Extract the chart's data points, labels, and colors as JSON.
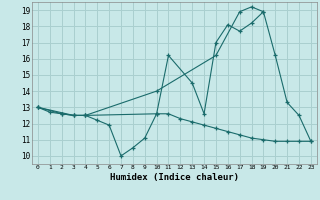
{
  "xlabel": "Humidex (Indice chaleur)",
  "bg_color": "#c8e8e8",
  "grid_color": "#aacfcf",
  "line_color": "#1a6b6b",
  "line1_x": [
    0,
    1,
    2,
    3,
    4,
    10,
    11,
    13,
    14,
    15,
    16,
    17,
    18,
    19
  ],
  "line1_y": [
    13,
    12.7,
    12.6,
    12.5,
    12.5,
    12.6,
    16.2,
    14.5,
    12.6,
    17.0,
    18.1,
    17.7,
    18.2,
    18.9
  ],
  "line2_x": [
    0,
    3,
    4,
    10,
    15,
    17,
    18,
    19,
    20,
    21,
    22,
    23
  ],
  "line2_y": [
    13,
    12.5,
    12.5,
    14.0,
    16.2,
    18.9,
    19.2,
    18.9,
    16.2,
    13.3,
    12.5,
    10.9
  ],
  "line3_x": [
    0,
    2,
    3,
    4,
    5,
    6,
    7,
    8,
    9,
    10,
    11,
    12,
    13,
    14,
    15,
    16,
    17,
    18,
    19,
    20,
    21,
    22,
    23
  ],
  "line3_y": [
    13,
    12.6,
    12.5,
    12.5,
    12.2,
    11.9,
    10.0,
    10.5,
    11.1,
    12.6,
    12.6,
    12.3,
    12.1,
    11.9,
    11.7,
    11.5,
    11.3,
    11.1,
    11.0,
    10.9,
    10.9,
    10.9,
    10.9
  ],
  "xlim": [
    -0.5,
    23.5
  ],
  "ylim": [
    9.5,
    19.5
  ],
  "xticks": [
    0,
    1,
    2,
    3,
    4,
    5,
    6,
    7,
    8,
    9,
    10,
    11,
    12,
    13,
    14,
    15,
    16,
    17,
    18,
    19,
    20,
    21,
    22,
    23
  ],
  "yticks": [
    10,
    11,
    12,
    13,
    14,
    15,
    16,
    17,
    18,
    19
  ]
}
